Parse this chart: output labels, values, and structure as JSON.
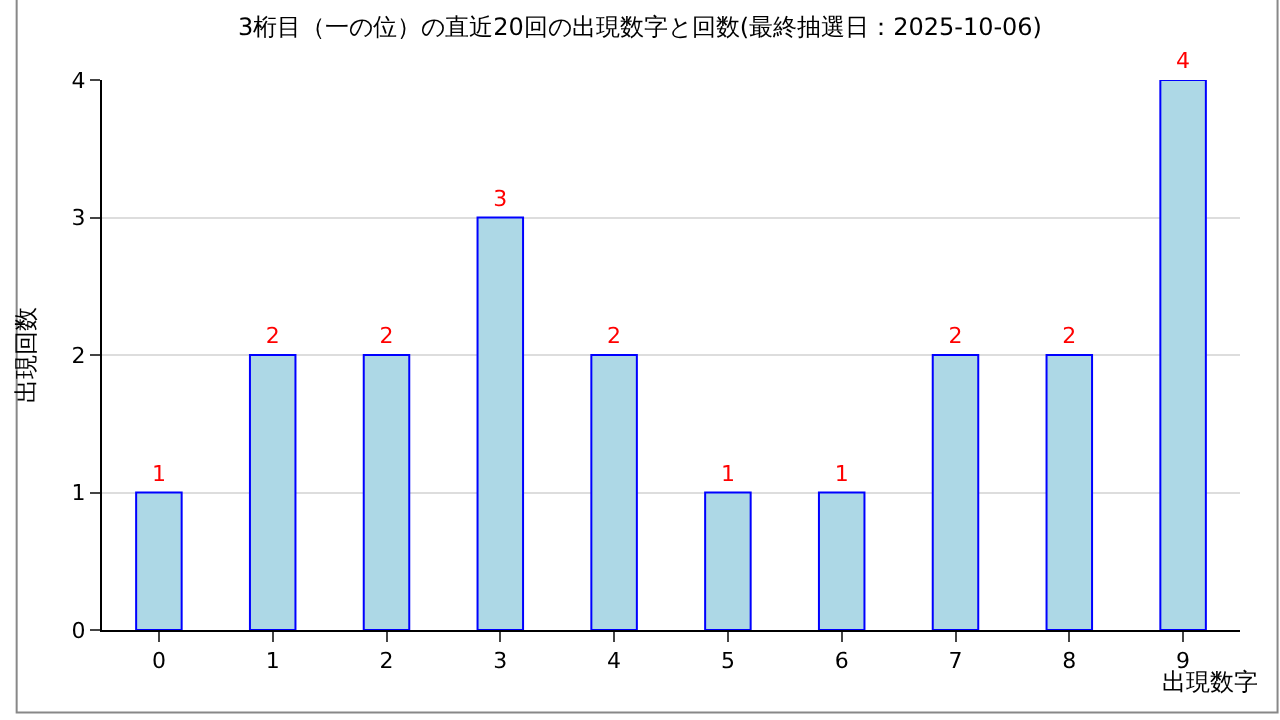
{
  "chart_data": {
    "type": "bar",
    "title": "3桁目（一の位）の直近20回の出現数字と回数(最終抽選日：2025-10-06)",
    "xlabel": "出現数字",
    "ylabel": "出現回数",
    "categories": [
      "0",
      "1",
      "2",
      "3",
      "4",
      "5",
      "6",
      "7",
      "8",
      "9"
    ],
    "series": [
      {
        "color": "#add8e6",
        "values": [
          1,
          2,
          2,
          3,
          2,
          1,
          1,
          2,
          2,
          4
        ]
      }
    ],
    "ylim": [
      0,
      4
    ],
    "yticks": [
      0,
      1,
      2,
      3,
      4
    ],
    "grid": "y",
    "legend": false,
    "data_labels": true
  }
}
